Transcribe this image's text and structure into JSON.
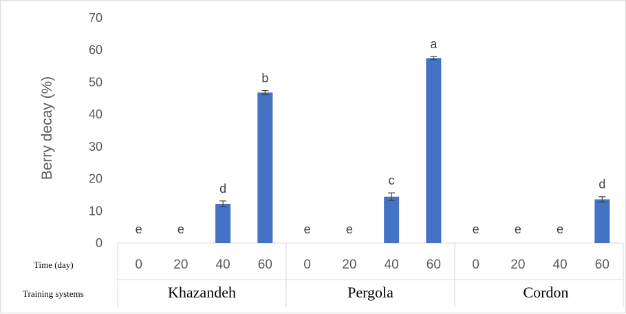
{
  "chart_data": {
    "type": "bar",
    "ylabel": "Berry decay  (%)",
    "ylim": [
      0,
      70
    ],
    "yticks": [
      0,
      10,
      20,
      30,
      40,
      50,
      60,
      70
    ],
    "grid": false,
    "bar_color": "#4472C4",
    "row_labels": {
      "time": "Time (day)",
      "system": "Training systems"
    },
    "groups": [
      {
        "name": "Khazandeh",
        "days": [
          "0",
          "20",
          "40",
          "60"
        ],
        "values": [
          0,
          0,
          12.2,
          46.8
        ],
        "errors": [
          0,
          0,
          0.9,
          0.6
        ],
        "letters": [
          "e",
          "e",
          "d",
          "b"
        ]
      },
      {
        "name": "Pergola",
        "days": [
          "0",
          "20",
          "40",
          "60"
        ],
        "values": [
          0,
          0,
          14.4,
          57.5
        ],
        "errors": [
          0,
          0,
          1.2,
          0.5
        ],
        "letters": [
          "e",
          "e",
          "c",
          "a"
        ]
      },
      {
        "name": "Cordon",
        "days": [
          "0",
          "20",
          "40",
          "60"
        ],
        "values": [
          0,
          0,
          0,
          13.6
        ],
        "errors": [
          0,
          0,
          0,
          0.8
        ],
        "letters": [
          "e",
          "e",
          "e",
          "d"
        ]
      }
    ]
  }
}
